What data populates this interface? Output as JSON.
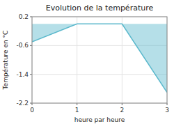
{
  "chart_data": {
    "type": "area",
    "title": "Evolution de la température",
    "x_label": "heure par heure",
    "y_label": "Température en °C",
    "x": [
      0,
      1,
      2,
      3
    ],
    "values": [
      -0.5,
      0.0,
      0.0,
      -1.9
    ],
    "color": "#5ab8cc",
    "xlim": [
      0,
      3
    ],
    "xticks": [
      0,
      1,
      2,
      3
    ],
    "ylim": [
      -2.2,
      0.2
    ],
    "yticks": [
      0.2,
      -0.6,
      -1.4,
      -2.2
    ],
    "grid": true
  }
}
